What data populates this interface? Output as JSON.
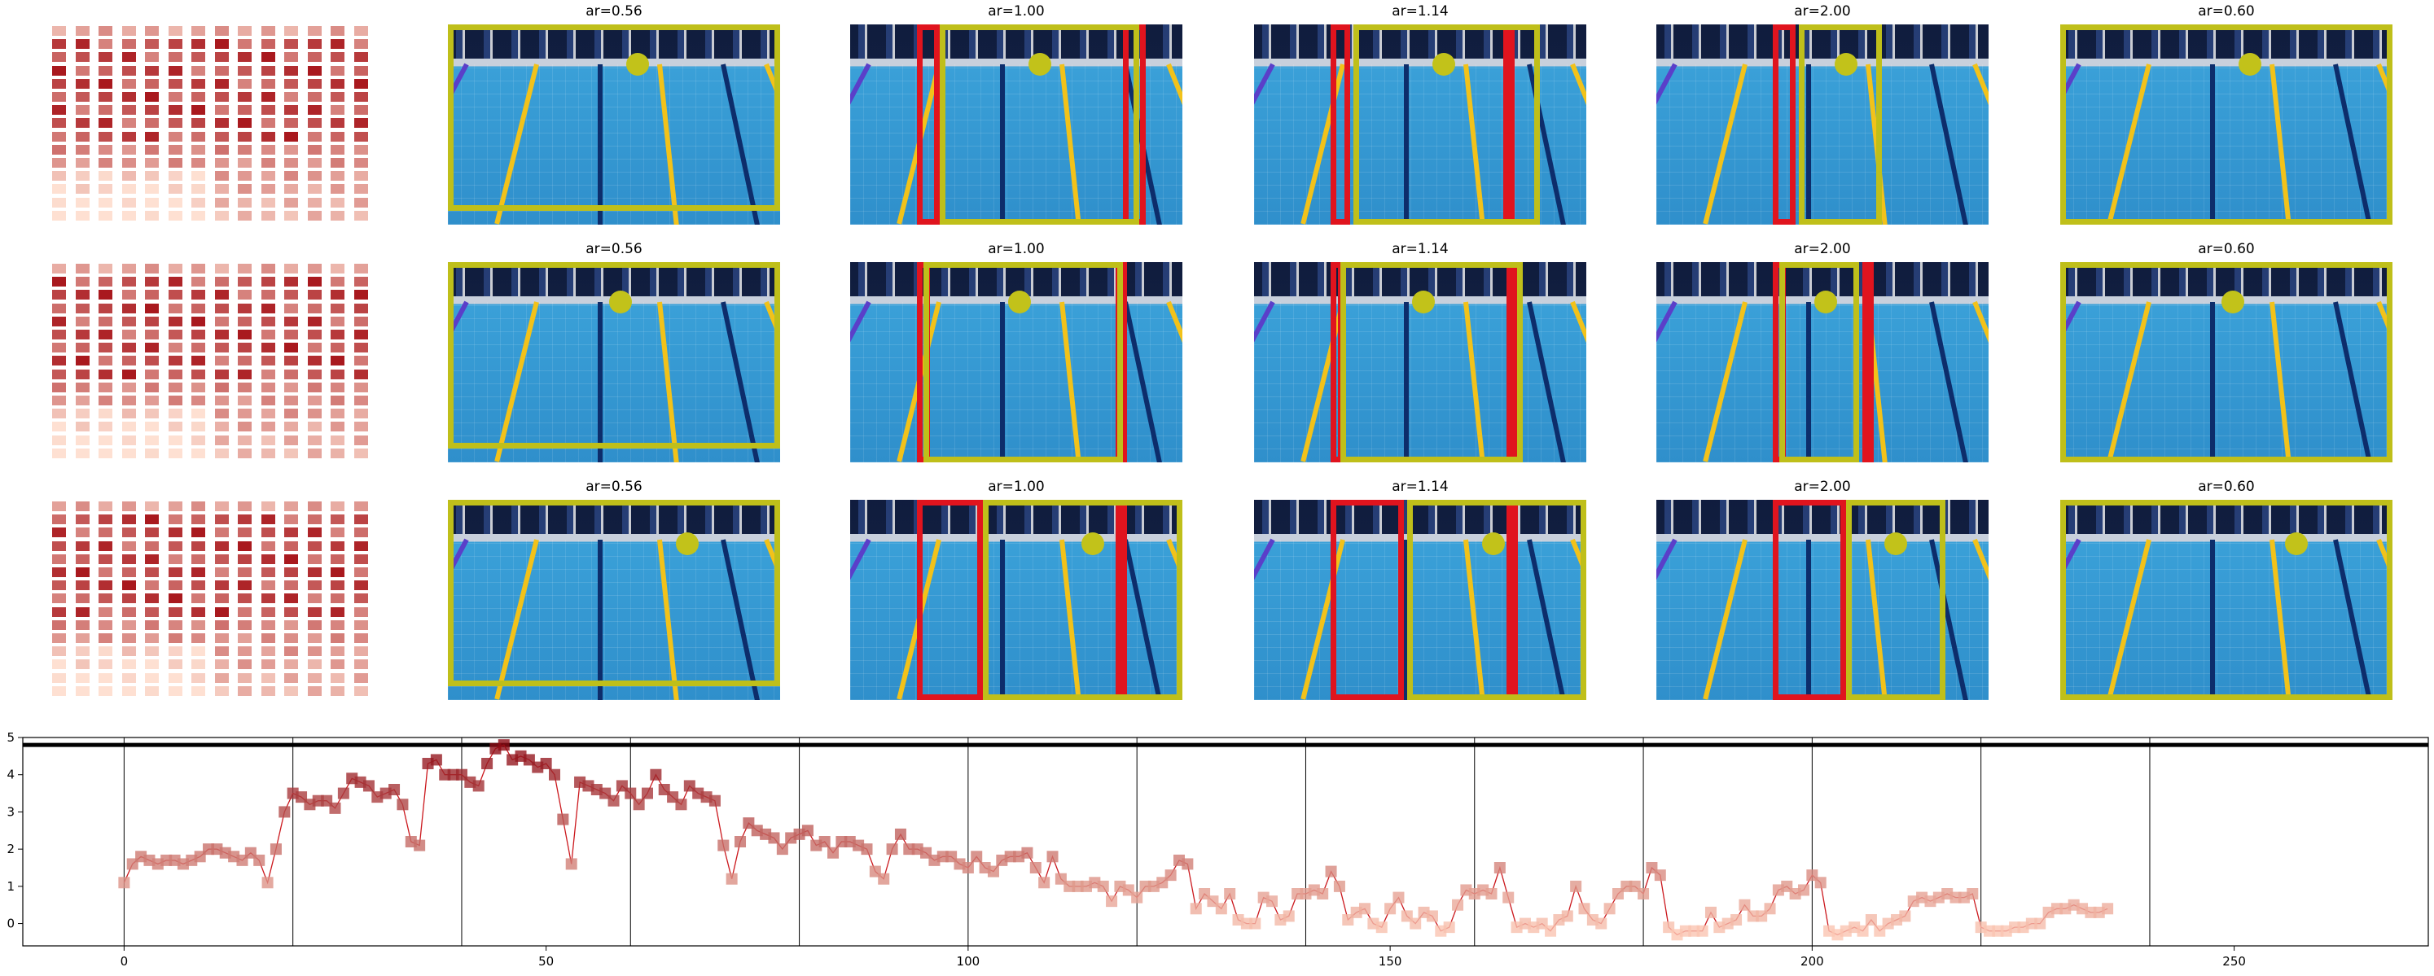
{
  "rows": [
    {
      "titles": [
        "ar=0.56",
        "ar=1.00",
        "ar=1.14",
        "ar=2.00",
        "ar=0.60"
      ],
      "heat_seed": 1
    },
    {
      "titles": [
        "ar=0.56",
        "ar=1.00",
        "ar=1.14",
        "ar=2.00",
        "ar=0.60"
      ],
      "heat_seed": 2
    },
    {
      "titles": [
        "ar=0.56",
        "ar=1.00",
        "ar=1.14",
        "ar=2.00",
        "ar=0.60"
      ],
      "heat_seed": 3
    }
  ],
  "colors": {
    "yellow_box": "#bfbf1a",
    "red_box": "#e0141e",
    "heat_dark": "#a50f15",
    "heat_light": "#fee0d2",
    "line": "#cb181d"
  },
  "chart_data": {
    "type": "line",
    "xlim": [
      -12,
      273
    ],
    "ylim": [
      -0.6,
      5.0
    ],
    "xticks": [
      "0",
      "50",
      "100",
      "150",
      "200",
      "250"
    ],
    "xtick_values": [
      0,
      50,
      100,
      150,
      200,
      250
    ],
    "yticks": [
      "0",
      "1",
      "2",
      "3",
      "4",
      "5"
    ],
    "ytick_values": [
      0,
      1,
      2,
      3,
      4,
      5
    ],
    "vlines": [
      0,
      20,
      40,
      60,
      80,
      100,
      120,
      140,
      160,
      180,
      200,
      220,
      240
    ],
    "hline": 4.8,
    "grid": false,
    "series": [
      {
        "values": [
          1.1,
          1.6,
          1.8,
          1.7,
          1.6,
          1.7,
          1.7,
          1.6,
          1.7,
          1.8,
          2.0,
          2.0,
          1.9,
          1.8,
          1.7,
          1.9,
          1.7,
          1.1,
          2.0,
          3.0,
          3.5,
          3.4,
          3.2,
          3.3,
          3.3,
          3.1,
          3.5,
          3.9,
          3.8,
          3.7,
          3.4,
          3.5,
          3.6,
          3.2,
          2.2,
          2.1,
          4.3,
          4.4,
          4.0,
          4.0,
          4.0,
          3.8,
          3.7,
          4.3,
          4.7,
          4.8,
          4.4,
          4.5,
          4.4,
          4.2,
          4.3,
          4.0,
          2.8,
          1.6,
          3.8,
          3.7,
          3.6,
          3.5,
          3.3,
          3.7,
          3.5,
          3.2,
          3.5,
          4.0,
          3.6,
          3.4,
          3.2,
          3.7,
          3.5,
          3.4,
          3.3,
          2.1,
          1.2,
          2.2,
          2.7,
          2.5,
          2.4,
          2.3,
          2.0,
          2.3,
          2.4,
          2.5,
          2.1,
          2.2,
          1.9,
          2.2,
          2.2,
          2.1,
          2.0,
          1.4,
          1.2,
          2.0,
          2.4,
          2.0,
          2.0,
          1.9,
          1.7,
          1.8,
          1.8,
          1.6,
          1.5,
          1.8,
          1.5,
          1.4,
          1.7,
          1.8,
          1.8,
          1.9,
          1.5,
          1.1,
          1.8,
          1.2,
          1.0,
          1.0,
          1.0,
          1.1,
          1.0,
          0.6,
          1.0,
          0.9,
          0.7,
          1.0,
          1.0,
          1.1,
          1.3,
          1.7,
          1.6,
          0.4,
          0.8,
          0.6,
          0.4,
          0.8,
          0.1,
          0.0,
          0.0,
          0.7,
          0.6,
          0.1,
          0.2,
          0.8,
          0.8,
          0.9,
          0.8,
          1.4,
          1.0,
          0.1,
          0.3,
          0.4,
          0.0,
          -0.1,
          0.4,
          0.7,
          0.2,
          0.0,
          0.3,
          0.2,
          -0.2,
          -0.1,
          0.5,
          0.9,
          0.8,
          0.9,
          0.8,
          1.5,
          0.7,
          -0.1,
          0.0,
          -0.1,
          0.0,
          -0.2,
          0.1,
          0.2,
          1.0,
          0.4,
          0.1,
          0.0,
          0.4,
          0.8,
          1.0,
          1.0,
          0.8,
          1.5,
          1.3,
          -0.1,
          -0.3,
          -0.2,
          -0.2,
          -0.2,
          0.3,
          -0.1,
          0.0,
          0.1,
          0.5,
          0.2,
          0.2,
          0.4,
          0.9,
          1.0,
          0.8,
          0.9,
          1.3,
          1.1,
          -0.2,
          -0.3,
          -0.2,
          -0.1,
          -0.2,
          0.1,
          -0.2,
          0.0,
          0.1,
          0.2,
          0.6,
          0.7,
          0.6,
          0.7,
          0.8,
          0.7,
          0.7,
          0.8,
          -0.1,
          -0.2,
          -0.2,
          -0.2,
          -0.1,
          -0.1,
          0.0,
          0.0,
          0.3,
          0.4,
          0.4,
          0.5,
          0.4,
          0.3,
          0.3,
          0.4
        ]
      }
    ]
  }
}
